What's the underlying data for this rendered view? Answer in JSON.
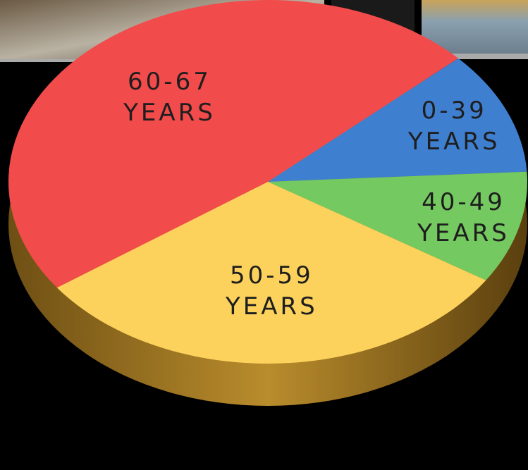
{
  "chart_data": {
    "type": "pie",
    "categories": [
      "0-39 YEARS",
      "40-49 YEARS",
      "50-59 YEARS",
      "60-67 YEARS"
    ],
    "values": [
      11,
      10,
      31,
      48
    ],
    "colors": [
      "#3f7fd0",
      "#74c960",
      "#fdd25c",
      "#f24b4b"
    ]
  }
}
